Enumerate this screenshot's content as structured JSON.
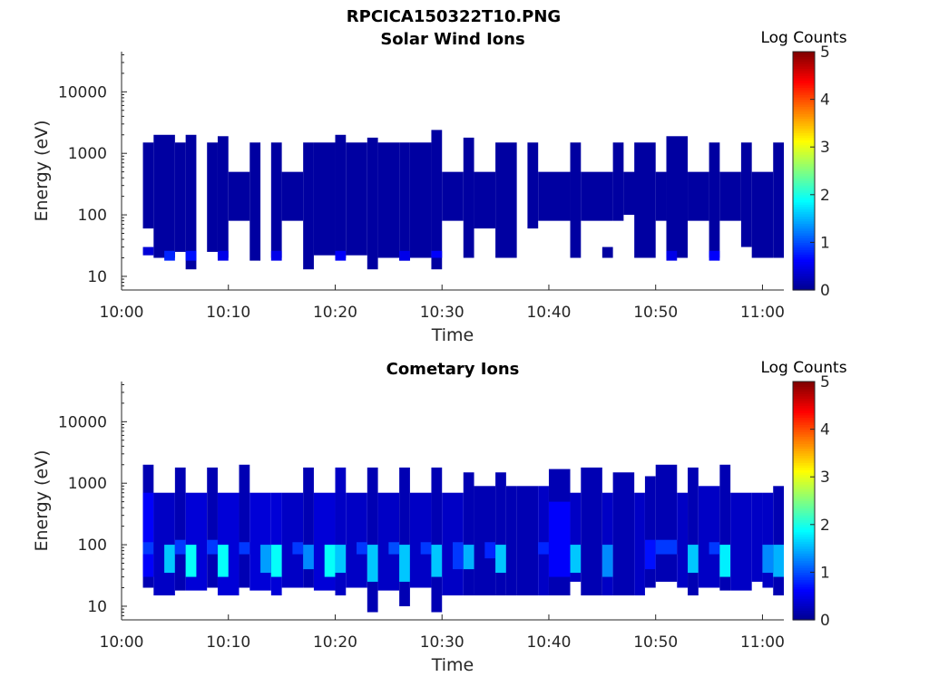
{
  "figure_title": "RPCICA150322T10.PNG",
  "colormap": [
    "#00008f",
    "#0000ff",
    "#0080ff",
    "#00ffff",
    "#80ff80",
    "#ffff00",
    "#ff8000",
    "#ff0000",
    "#800000"
  ],
  "chart_data": [
    {
      "type": "heatmap",
      "title": "Solar Wind Ions",
      "xlabel": "Time",
      "ylabel": "Energy (eV)",
      "yscale": "log",
      "xlim": [
        "10:00",
        "11:02"
      ],
      "ylim": [
        6,
        45000
      ],
      "xticks": [
        "10:00",
        "10:10",
        "10:20",
        "10:30",
        "10:40",
        "10:50",
        "11:00"
      ],
      "yticks": [
        10,
        100,
        1000,
        10000
      ],
      "colorbar": {
        "label": "Log Counts",
        "range": [
          0,
          5
        ],
        "ticks": [
          0,
          1,
          2,
          3,
          4,
          5
        ]
      },
      "cells": [
        [
          "10:02",
          "10:03",
          60,
          1500,
          0.1
        ],
        [
          "10:02",
          "10:03",
          22,
          30,
          0.4
        ],
        [
          "10:03",
          "10:05",
          20,
          2000,
          0.1
        ],
        [
          "10:04",
          "10:05",
          18,
          26,
          0.8
        ],
        [
          "10:05",
          "10:06",
          25,
          1500,
          0.1
        ],
        [
          "10:06",
          "10:07",
          20,
          2000,
          0.1
        ],
        [
          "10:06",
          "10:07",
          13,
          20,
          0.1
        ],
        [
          "10:06",
          "10:07",
          18,
          26,
          0.7
        ],
        [
          "10:08",
          "10:09",
          25,
          1500,
          0.1
        ],
        [
          "10:09",
          "10:10",
          20,
          1900,
          0.1
        ],
        [
          "10:09",
          "10:10",
          18,
          26,
          0.5
        ],
        [
          "10:10",
          "10:12",
          80,
          500,
          0.1
        ],
        [
          "10:12",
          "10:13",
          18,
          1500,
          0.1
        ],
        [
          "10:14",
          "10:15",
          20,
          1500,
          0.1
        ],
        [
          "10:14",
          "10:15",
          18,
          26,
          0.5
        ],
        [
          "10:15",
          "10:17",
          80,
          500,
          0.1
        ],
        [
          "10:17",
          "10:18",
          13,
          1500,
          0.1
        ],
        [
          "10:18",
          "10:20",
          22,
          1500,
          0.1
        ],
        [
          "10:20",
          "10:21",
          20,
          2000,
          0.1
        ],
        [
          "10:20",
          "10:21",
          18,
          26,
          0.6
        ],
        [
          "10:21",
          "10:23",
          22,
          1500,
          0.1
        ],
        [
          "10:23",
          "10:24",
          13,
          1800,
          0.1
        ],
        [
          "10:24",
          "10:26",
          20,
          1500,
          0.1
        ],
        [
          "10:26",
          "10:27",
          18,
          1500,
          0.1
        ],
        [
          "10:26",
          "10:27",
          18,
          26,
          0.5
        ],
        [
          "10:27",
          "10:29",
          20,
          1500,
          0.1
        ],
        [
          "10:29",
          "10:30",
          13,
          2400,
          0.1
        ],
        [
          "10:29",
          "10:30",
          20,
          26,
          0.6
        ],
        [
          "10:30",
          "10:32",
          80,
          500,
          0.1
        ],
        [
          "10:32",
          "10:33",
          20,
          1800,
          0.1
        ],
        [
          "10:33",
          "10:35",
          60,
          500,
          0.1
        ],
        [
          "10:35",
          "10:37",
          20,
          1500,
          0.1
        ],
        [
          "10:38",
          "10:39",
          60,
          1500,
          0.1
        ],
        [
          "10:39",
          "10:42",
          80,
          500,
          0.1
        ],
        [
          "10:42",
          "10:43",
          20,
          1500,
          0.1
        ],
        [
          "10:43",
          "10:46",
          80,
          500,
          0.1
        ],
        [
          "10:45",
          "10:46",
          20,
          30,
          0.1
        ],
        [
          "10:46",
          "10:47",
          80,
          1500,
          0.1
        ],
        [
          "10:47",
          "10:49",
          100,
          500,
          0.1
        ],
        [
          "10:48",
          "10:50",
          20,
          1500,
          0.1
        ],
        [
          "10:50",
          "10:51",
          80,
          500,
          0.1
        ],
        [
          "10:51",
          "10:53",
          20,
          1900,
          0.1
        ],
        [
          "10:51",
          "10:52",
          18,
          26,
          0.5
        ],
        [
          "10:53",
          "10:55",
          80,
          500,
          0.1
        ],
        [
          "10:55",
          "10:56",
          20,
          1500,
          0.1
        ],
        [
          "10:55",
          "10:56",
          18,
          26,
          0.6
        ],
        [
          "10:56",
          "10:58",
          80,
          500,
          0.1
        ],
        [
          "10:58",
          "10:59",
          30,
          1500,
          0.1
        ],
        [
          "10:59",
          "11:01",
          20,
          500,
          0.1
        ],
        [
          "11:01",
          "11:02",
          20,
          1500,
          0.1
        ]
      ]
    },
    {
      "type": "heatmap",
      "title": "Cometary Ions",
      "xlabel": "Time",
      "ylabel": "Energy (eV)",
      "yscale": "log",
      "xlim": [
        "10:00",
        "11:02"
      ],
      "ylim": [
        6,
        45000
      ],
      "xticks": [
        "10:00",
        "10:10",
        "10:20",
        "10:30",
        "10:40",
        "10:50",
        "11:00"
      ],
      "yticks": [
        10,
        100,
        1000,
        10000
      ],
      "colorbar": {
        "label": "Log Counts",
        "range": [
          0,
          5
        ],
        "ticks": [
          0,
          1,
          2,
          3,
          4,
          5
        ]
      },
      "cells": [
        [
          "10:02",
          "10:03",
          20,
          2000,
          0.2
        ],
        [
          "10:02",
          "10:03",
          30,
          700,
          0.6
        ],
        [
          "10:02",
          "10:03",
          70,
          110,
          0.9
        ],
        [
          "10:03",
          "10:05",
          15,
          700,
          0.3
        ],
        [
          "10:04",
          "10:05",
          35,
          100,
          1.6
        ],
        [
          "10:05",
          "10:06",
          18,
          1800,
          0.2
        ],
        [
          "10:05",
          "10:06",
          70,
          120,
          0.9
        ],
        [
          "10:06",
          "10:08",
          18,
          700,
          0.4
        ],
        [
          "10:06",
          "10:07",
          30,
          100,
          1.9
        ],
        [
          "10:08",
          "10:09",
          20,
          1800,
          0.2
        ],
        [
          "10:08",
          "10:09",
          70,
          120,
          0.9
        ],
        [
          "10:09",
          "10:11",
          15,
          700,
          0.4
        ],
        [
          "10:09",
          "10:10",
          30,
          100,
          1.9
        ],
        [
          "10:11",
          "10:12",
          20,
          2000,
          0.2
        ],
        [
          "10:11",
          "10:12",
          70,
          110,
          0.9
        ],
        [
          "10:12",
          "10:14",
          18,
          700,
          0.4
        ],
        [
          "10:13",
          "10:14",
          35,
          100,
          1.4
        ],
        [
          "10:14",
          "10:15",
          15,
          700,
          0.4
        ],
        [
          "10:14",
          "10:15",
          30,
          100,
          1.9
        ],
        [
          "10:15",
          "10:17",
          20,
          700,
          0.3
        ],
        [
          "10:16",
          "10:17",
          70,
          110,
          0.9
        ],
        [
          "10:17",
          "10:18",
          20,
          1800,
          0.2
        ],
        [
          "10:17",
          "10:18",
          40,
          100,
          1.3
        ],
        [
          "10:18",
          "10:20",
          18,
          700,
          0.4
        ],
        [
          "10:19",
          "10:20",
          30,
          100,
          1.9
        ],
        [
          "10:20",
          "10:21",
          15,
          1800,
          0.3
        ],
        [
          "10:20",
          "10:21",
          35,
          100,
          1.6
        ],
        [
          "10:21",
          "10:23",
          20,
          700,
          0.3
        ],
        [
          "10:22",
          "10:23",
          70,
          110,
          0.9
        ],
        [
          "10:23",
          "10:24",
          8,
          1800,
          0.2
        ],
        [
          "10:23",
          "10:24",
          25,
          100,
          1.6
        ],
        [
          "10:24",
          "10:26",
          18,
          700,
          0.3
        ],
        [
          "10:25",
          "10:26",
          70,
          110,
          1.0
        ],
        [
          "10:26",
          "10:27",
          10,
          1800,
          0.2
        ],
        [
          "10:26",
          "10:27",
          25,
          100,
          1.6
        ],
        [
          "10:27",
          "10:29",
          20,
          700,
          0.3
        ],
        [
          "10:28",
          "10:29",
          70,
          110,
          0.9
        ],
        [
          "10:29",
          "10:30",
          8,
          1800,
          0.2
        ],
        [
          "10:29",
          "10:30",
          30,
          100,
          1.6
        ],
        [
          "10:30",
          "10:32",
          15,
          700,
          0.3
        ],
        [
          "10:31",
          "10:32",
          40,
          110,
          0.9
        ],
        [
          "10:32",
          "10:33",
          15,
          1500,
          0.2
        ],
        [
          "10:32",
          "10:33",
          40,
          100,
          1.5
        ],
        [
          "10:33",
          "10:35",
          15,
          900,
          0.2
        ],
        [
          "10:34",
          "10:35",
          60,
          110,
          0.8
        ],
        [
          "10:35",
          "10:36",
          15,
          1500,
          0.2
        ],
        [
          "10:35",
          "10:36",
          35,
          100,
          1.6
        ],
        [
          "10:36",
          "10:37",
          15,
          900,
          0.2
        ],
        [
          "10:37",
          "10:39",
          15,
          900,
          0.2
        ],
        [
          "10:39",
          "10:40",
          15,
          900,
          0.3
        ],
        [
          "10:39",
          "10:40",
          70,
          110,
          0.8
        ],
        [
          "10:40",
          "10:42",
          15,
          1700,
          0.2
        ],
        [
          "10:40",
          "10:42",
          30,
          500,
          0.6
        ],
        [
          "10:42",
          "10:43",
          25,
          700,
          0.3
        ],
        [
          "10:42",
          "10:43",
          35,
          100,
          1.6
        ],
        [
          "10:43",
          "10:45",
          15,
          1800,
          0.2
        ],
        [
          "10:45",
          "10:46",
          15,
          700,
          0.3
        ],
        [
          "10:45",
          "10:46",
          30,
          100,
          1.3
        ],
        [
          "10:46",
          "10:48",
          15,
          1500,
          0.2
        ],
        [
          "10:48",
          "10:49",
          15,
          700,
          0.3
        ],
        [
          "10:49",
          "10:50",
          20,
          1300,
          0.2
        ],
        [
          "10:49",
          "10:50",
          40,
          120,
          0.7
        ],
        [
          "10:50",
          "10:52",
          25,
          2000,
          0.2
        ],
        [
          "10:50",
          "10:52",
          70,
          120,
          0.9
        ],
        [
          "10:52",
          "10:53",
          20,
          700,
          0.3
        ],
        [
          "10:53",
          "10:54",
          15,
          1800,
          0.2
        ],
        [
          "10:53",
          "10:54",
          35,
          100,
          1.6
        ],
        [
          "10:54",
          "10:56",
          20,
          900,
          0.3
        ],
        [
          "10:55",
          "10:56",
          70,
          110,
          0.9
        ],
        [
          "10:56",
          "10:57",
          18,
          2000,
          0.2
        ],
        [
          "10:56",
          "10:57",
          30,
          100,
          1.8
        ],
        [
          "10:57",
          "10:59",
          18,
          700,
          0.3
        ],
        [
          "10:59",
          "11:00",
          25,
          700,
          0.3
        ],
        [
          "11:00",
          "11:01",
          20,
          700,
          0.3
        ],
        [
          "11:00",
          "11:01",
          35,
          100,
          1.3
        ],
        [
          "11:01",
          "11:02",
          15,
          900,
          0.2
        ],
        [
          "11:01",
          "11:02",
          30,
          100,
          1.5
        ]
      ]
    }
  ]
}
